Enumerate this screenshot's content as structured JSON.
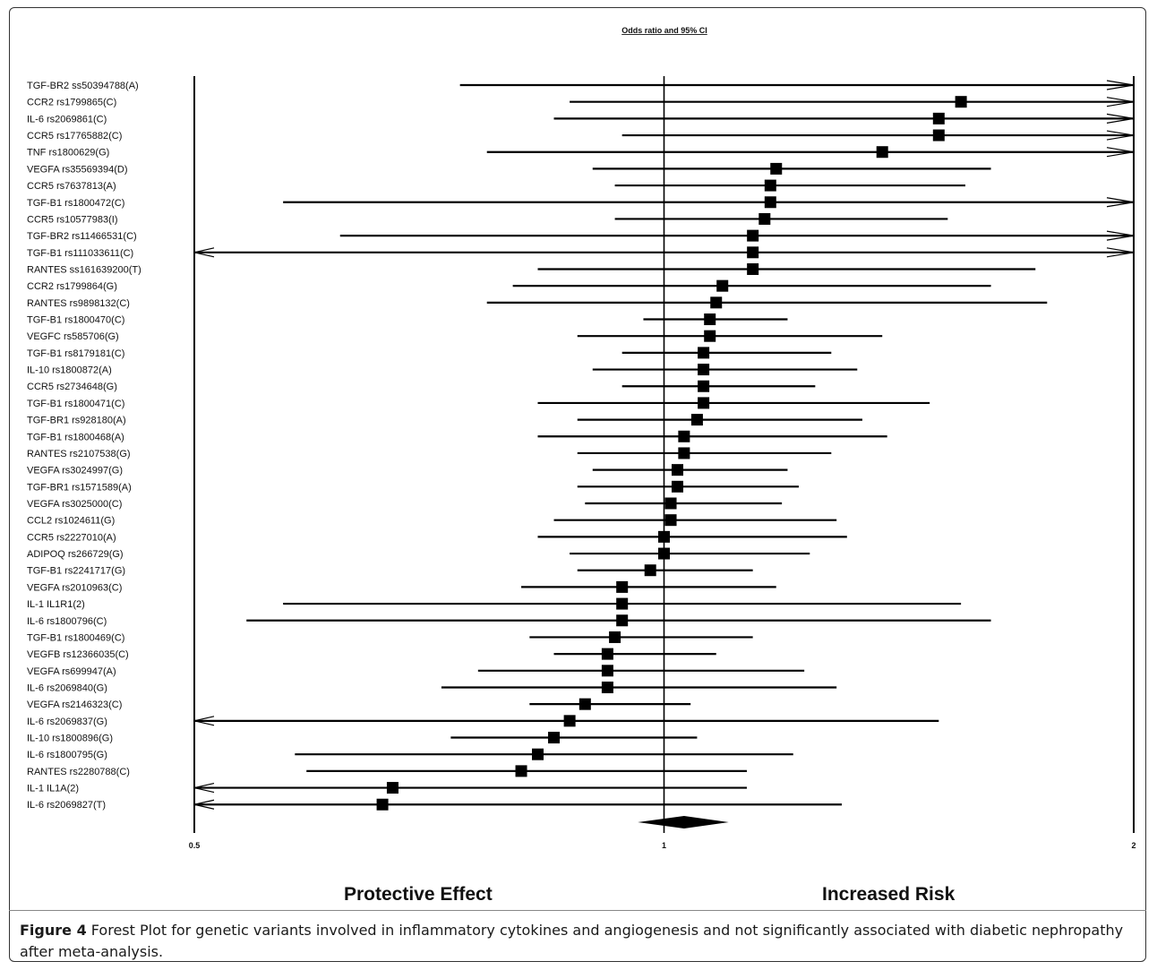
{
  "chart_data": {
    "type": "forest",
    "title": "Odds ratio and 95% CI",
    "x_scale": "log",
    "xlim": [
      0.5,
      2
    ],
    "x_ticks": [
      "0.5",
      "1",
      "2"
    ],
    "reference_line": 1,
    "left_label": "Protective Effect",
    "right_label": "Increased Risk",
    "rows": [
      {
        "label": "TGF-BR2 ss50394788(A)",
        "or": null,
        "lower": 0.74,
        "upper": 2
      },
      {
        "label": "CCR2 rs1799865(C)",
        "or": 1.55,
        "lower": 0.87,
        "upper": 2
      },
      {
        "label": "IL-6 rs2069861(C)",
        "or": 1.5,
        "lower": 0.85,
        "upper": 2
      },
      {
        "label": "CCR5 rs17765882(C)",
        "or": 1.5,
        "lower": 0.94,
        "upper": 2
      },
      {
        "label": "TNF rs1800629(G)",
        "or": 1.38,
        "lower": 0.77,
        "upper": 2
      },
      {
        "label": "VEGFA rs35569394(D)",
        "or": 1.18,
        "lower": 0.9,
        "upper": 1.62
      },
      {
        "label": "CCR5 rs7637813(A)",
        "or": 1.17,
        "lower": 0.93,
        "upper": 1.56
      },
      {
        "label": "TGF-B1 rs1800472(C)",
        "or": 1.17,
        "lower": 0.57,
        "upper": 2
      },
      {
        "label": "CCR5 rs10577983(I)",
        "or": 1.16,
        "lower": 0.93,
        "upper": 1.52
      },
      {
        "label": "TGF-BR2 rs11466531(C)",
        "or": 1.14,
        "lower": 0.62,
        "upper": 2
      },
      {
        "label": "TGF-B1 rs111033611(C)",
        "or": 1.14,
        "lower": 0.5,
        "upper": 2
      },
      {
        "label": "RANTES ss161639200(T)",
        "or": 1.14,
        "lower": 0.83,
        "upper": 1.73
      },
      {
        "label": "CCR2 rs1799864(G)",
        "or": 1.09,
        "lower": 0.8,
        "upper": 1.62
      },
      {
        "label": "RANTES rs9898132(C)",
        "or": 1.08,
        "lower": 0.77,
        "upper": 1.76
      },
      {
        "label": "TGF-B1 rs1800470(C)",
        "or": 1.07,
        "lower": 0.97,
        "upper": 1.2
      },
      {
        "label": "VEGFC rs585706(G)",
        "or": 1.07,
        "lower": 0.88,
        "upper": 1.38
      },
      {
        "label": "TGF-B1 rs8179181(C)",
        "or": 1.06,
        "lower": 0.94,
        "upper": 1.28
      },
      {
        "label": "IL-10 rs1800872(A)",
        "or": 1.06,
        "lower": 0.9,
        "upper": 1.33
      },
      {
        "label": "CCR5 rs2734648(G)",
        "or": 1.06,
        "lower": 0.94,
        "upper": 1.25
      },
      {
        "label": "TGF-B1 rs1800471(C)",
        "or": 1.06,
        "lower": 0.83,
        "upper": 1.48
      },
      {
        "label": "TGF-BR1 rs928180(A)",
        "or": 1.05,
        "lower": 0.88,
        "upper": 1.34
      },
      {
        "label": "TGF-B1 rs1800468(A)",
        "or": 1.03,
        "lower": 0.83,
        "upper": 1.39
      },
      {
        "label": "RANTES rs2107538(G)",
        "or": 1.03,
        "lower": 0.88,
        "upper": 1.28
      },
      {
        "label": "VEGFA rs3024997(G)",
        "or": 1.02,
        "lower": 0.9,
        "upper": 1.2
      },
      {
        "label": "TGF-BR1 rs1571589(A)",
        "or": 1.02,
        "lower": 0.88,
        "upper": 1.22
      },
      {
        "label": "VEGFA rs3025000(C)",
        "or": 1.01,
        "lower": 0.89,
        "upper": 1.19
      },
      {
        "label": "CCL2 rs1024611(G)",
        "or": 1.01,
        "lower": 0.85,
        "upper": 1.29
      },
      {
        "label": "CCR5 rs2227010(A)",
        "or": 1.0,
        "lower": 0.83,
        "upper": 1.31
      },
      {
        "label": "ADIPOQ rs266729(G)",
        "or": 1.0,
        "lower": 0.87,
        "upper": 1.24
      },
      {
        "label": "TGF-B1 rs2241717(G)",
        "or": 0.98,
        "lower": 0.88,
        "upper": 1.14
      },
      {
        "label": "VEGFA rs2010963(C)",
        "or": 0.94,
        "lower": 0.81,
        "upper": 1.18
      },
      {
        "label": "IL-1 IL1R1(2)",
        "or": 0.94,
        "lower": 0.57,
        "upper": 1.55
      },
      {
        "label": "IL-6 rs1800796(C)",
        "or": 0.94,
        "lower": 0.54,
        "upper": 1.62
      },
      {
        "label": "TGF-B1 rs1800469(C)",
        "or": 0.93,
        "lower": 0.82,
        "upper": 1.14
      },
      {
        "label": "VEGFB rs12366035(C)",
        "or": 0.92,
        "lower": 0.85,
        "upper": 1.08
      },
      {
        "label": "VEGFA rs699947(A)",
        "or": 0.92,
        "lower": 0.76,
        "upper": 1.23
      },
      {
        "label": "IL-6 rs2069840(G)",
        "or": 0.92,
        "lower": 0.72,
        "upper": 1.29
      },
      {
        "label": "VEGFA rs2146323(C)",
        "or": 0.89,
        "lower": 0.82,
        "upper": 1.04
      },
      {
        "label": "IL-6 rs2069837(G)",
        "or": 0.87,
        "lower": 0.5,
        "upper": 1.5
      },
      {
        "label": "IL-10 rs1800896(G)",
        "or": 0.85,
        "lower": 0.73,
        "upper": 1.05
      },
      {
        "label": "IL-6 rs1800795(G)",
        "or": 0.83,
        "lower": 0.58,
        "upper": 1.21
      },
      {
        "label": "RANTES rs2280788(C)",
        "or": 0.81,
        "lower": 0.59,
        "upper": 1.13
      },
      {
        "label": "IL-1 IL1A(2)",
        "or": 0.67,
        "lower": 0.5,
        "upper": 1.13
      },
      {
        "label": "IL-6 rs2069827(T)",
        "or": 0.66,
        "lower": 0.5,
        "upper": 1.3
      }
    ],
    "pooled": {
      "or": 1.03,
      "lower": 0.98,
      "upper": 1.08
    }
  },
  "caption": {
    "label": "Figure 4",
    "text": " Forest Plot for genetic variants involved in inflammatory cytokines and angiogenesis and not significantly associated with diabetic nephropathy after meta-analysis."
  }
}
